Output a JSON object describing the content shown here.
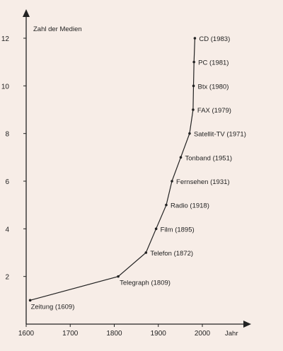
{
  "chart_data": {
    "type": "line",
    "title": "",
    "ylabel": "Zahl der Medien",
    "xlabel": "Jahr",
    "xlim": [
      1600,
      2000
    ],
    "ylim": [
      0,
      12
    ],
    "xticks": [
      "1600",
      "1700",
      "1800",
      "1900",
      "2000"
    ],
    "yticks": [
      "2",
      "4",
      "6",
      "8",
      "10",
      "12"
    ],
    "grid": false,
    "points": [
      {
        "x": 1609,
        "y": 1,
        "label": "Zeitung (1609)"
      },
      {
        "x": 1809,
        "y": 2,
        "label": "Telegraph (1809)"
      },
      {
        "x": 1872,
        "y": 3,
        "label": "Telefon (1872)"
      },
      {
        "x": 1895,
        "y": 4,
        "label": "Film (1895)"
      },
      {
        "x": 1918,
        "y": 5,
        "label": "Radio (1918)"
      },
      {
        "x": 1931,
        "y": 6,
        "label": "Fernsehen (1931)"
      },
      {
        "x": 1951,
        "y": 7,
        "label": "Tonband (1951)"
      },
      {
        "x": 1971,
        "y": 8,
        "label": "Satellit-TV (1971)"
      },
      {
        "x": 1979,
        "y": 9,
        "label": "FAX (1979)"
      },
      {
        "x": 1980,
        "y": 10,
        "label": "Btx (1980)"
      },
      {
        "x": 1981,
        "y": 11,
        "label": "PC (1981)"
      },
      {
        "x": 1983,
        "y": 12,
        "label": "CD (1983)"
      }
    ]
  }
}
